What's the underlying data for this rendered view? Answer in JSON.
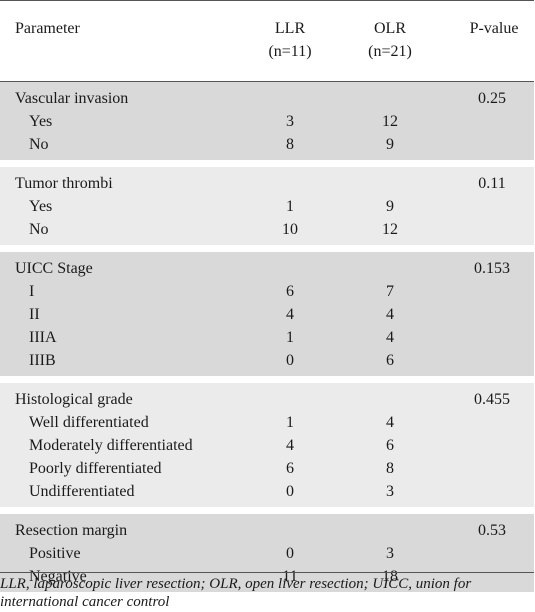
{
  "header": {
    "parameter": "Parameter",
    "llr_line1": "LLR",
    "llr_line2": "(n=11)",
    "olr_line1": "OLR",
    "olr_line2": "(n=21)",
    "pvalue": "P-value"
  },
  "groups": [
    {
      "title": "Vascular invasion",
      "pvalue": "0.25",
      "rows": [
        {
          "label": "Yes",
          "llr": "3",
          "olr": "12"
        },
        {
          "label": "No",
          "llr": "8",
          "olr": "9"
        }
      ]
    },
    {
      "title": "Tumor thrombi",
      "pvalue": "0.11",
      "rows": [
        {
          "label": "Yes",
          "llr": "1",
          "olr": "9"
        },
        {
          "label": "No",
          "llr": "10",
          "olr": "12"
        }
      ]
    },
    {
      "title": "UICC Stage",
      "pvalue": "0.153",
      "rows": [
        {
          "label": "I",
          "llr": "6",
          "olr": "7"
        },
        {
          "label": "II",
          "llr": "4",
          "olr": "4"
        },
        {
          "label": "IIIA",
          "llr": "1",
          "olr": "4"
        },
        {
          "label": "IIIB",
          "llr": "0",
          "olr": "6"
        }
      ]
    },
    {
      "title": "Histological grade",
      "pvalue": "0.455",
      "rows": [
        {
          "label": "Well differentiated",
          "llr": "1",
          "olr": "4"
        },
        {
          "label": "Moderately differentiated",
          "llr": "4",
          "olr": "6"
        },
        {
          "label": "Poorly differentiated",
          "llr": "6",
          "olr": "8"
        },
        {
          "label": "Undifferentiated",
          "llr": "0",
          "olr": "3"
        }
      ]
    },
    {
      "title": "Resection margin",
      "pvalue": "0.53",
      "rows": [
        {
          "label": "Positive",
          "llr": "0",
          "olr": "3"
        },
        {
          "label": "Negative",
          "llr": "11",
          "olr": "18"
        }
      ]
    }
  ],
  "footnote": "LLR, laparoscopic liver resection; OLR, open liver resection; UICC, union for international cancer control",
  "colors": {
    "dark_band": "#d9d9da",
    "light_band": "#ebebec"
  }
}
